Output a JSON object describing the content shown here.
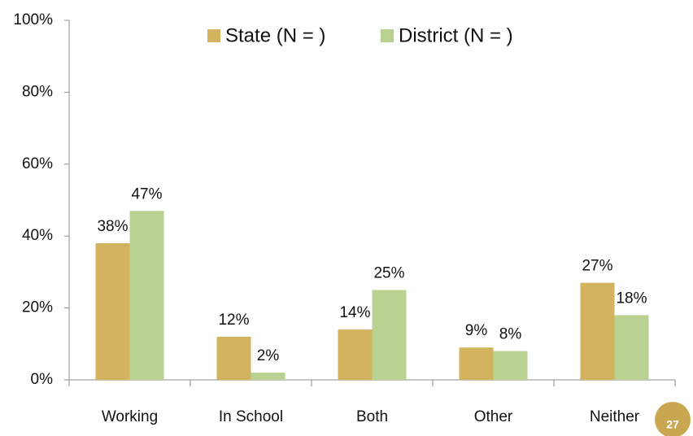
{
  "chart_data": {
    "type": "bar",
    "categories": [
      "Working",
      "In School",
      "Both",
      "Other",
      "Neither"
    ],
    "series": [
      {
        "name": "State (N = )",
        "color": "#d4b35f",
        "values": [
          38,
          12,
          14,
          9,
          27
        ],
        "value_labels": [
          "38%",
          "12%",
          "14%",
          "9%",
          "27%"
        ]
      },
      {
        "name": "District (N = )",
        "color": "#b9d291",
        "values": [
          47,
          2,
          25,
          8,
          18
        ],
        "value_labels": [
          "47%",
          "2%",
          "25%",
          "8%",
          "18%"
        ]
      }
    ],
    "ylim": [
      0,
      100
    ],
    "yticks": [
      {
        "value": 0,
        "label": "0%"
      },
      {
        "value": 20,
        "label": "20%"
      },
      {
        "value": 40,
        "label": "40%"
      },
      {
        "value": 60,
        "label": "60%"
      },
      {
        "value": 80,
        "label": "80%"
      },
      {
        "value": 100,
        "label": "100%"
      }
    ],
    "legend": "upper center",
    "grid": false
  },
  "page_number": "27"
}
